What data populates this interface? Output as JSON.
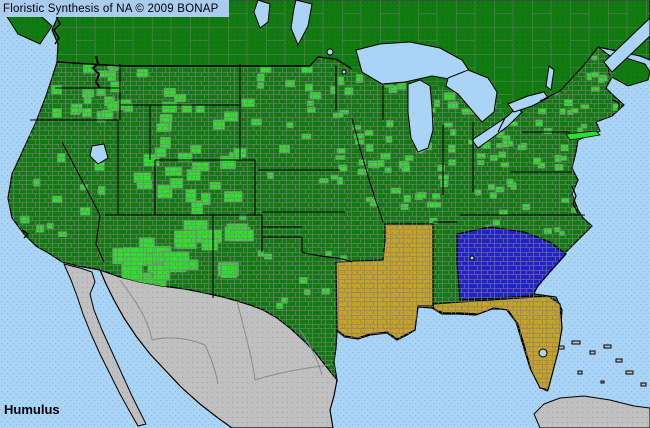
{
  "header": {
    "title": "Floristic Synthesis of NA © 2009 BONAP"
  },
  "footer": {
    "taxon": "Humulus"
  },
  "map": {
    "colors": {
      "water": "#AAD4F6",
      "water_dot": "#8CBEE6",
      "title_bar_bg": "#AACCEE",
      "state_present_green": "#117A11",
      "county_present_green": "#2CE02C",
      "gold_region": "#C6A227",
      "blue_region": "#2222CC",
      "outside_gray": "#C0C0C0",
      "county_border": "#7F7F7F",
      "state_border": "#000000",
      "text": "#000000"
    },
    "regions_colored": {
      "dark_green_area": "United States and southern Canada",
      "bright_green_counties": "scattered counties across most US states, dense in Midwest, Northeast, Rockies and Southwest",
      "gold_states": [
        "Louisiana",
        "Mississippi",
        "Florida"
      ],
      "blue_states": [
        "Georgia",
        "South Carolina"
      ],
      "gray_areas": [
        "Mexico",
        "Cuba",
        "Bahamas"
      ]
    }
  }
}
